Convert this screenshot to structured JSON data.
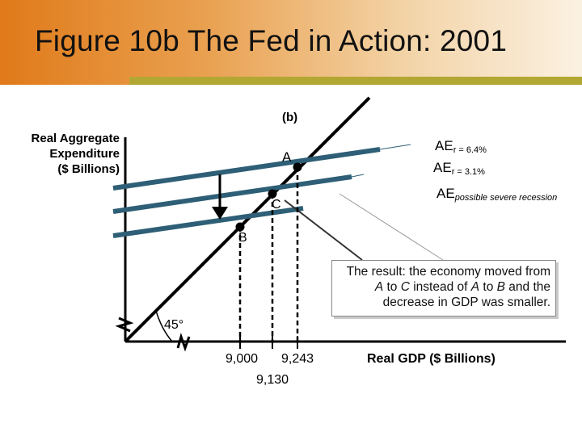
{
  "slide": {
    "title": "Figure 10b  The Fed in Action: 2001"
  },
  "diagram": {
    "panel_label": "(b)",
    "y_axis_label": [
      "Real Aggregate",
      "Expenditure",
      "($ Billions)"
    ],
    "x_axis_label": "Real GDP ($ Billions)",
    "angle_label": "45°",
    "lines": [
      {
        "name": "AE",
        "subscript": "r = 6.4%",
        "subscript_italic": false
      },
      {
        "name": "AE",
        "subscript": "r = 3.1%",
        "subscript_italic": false
      },
      {
        "name": "AE",
        "subscript": "possible severe recession",
        "subscript_italic": true
      }
    ],
    "points": {
      "A": "A",
      "B": "B",
      "C": "C"
    },
    "x_ticks": [
      "9,000",
      "9,243",
      "9,130"
    ]
  },
  "callout": {
    "text_html": "The result: the economy moved from <i>A</i> to <i>C</i> instead of <i>A</i> to <i>B</i> and the decrease in GDP was smaller.",
    "text": "The result: the economy moved from A to C instead of A to B and the decrease in GDP was smaller."
  },
  "colors": {
    "ae_line": "#2e5f76",
    "axis": "#000000",
    "title_orange": "#e07a1a",
    "accent_bar": "#b3a733"
  }
}
